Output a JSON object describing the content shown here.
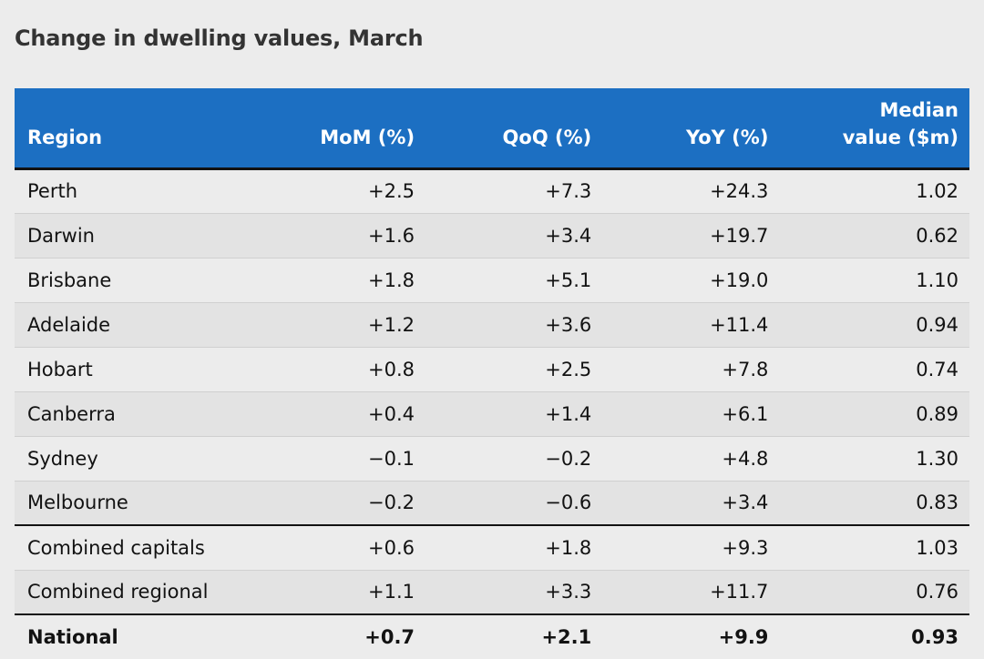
{
  "title": "Change in dwelling values, March",
  "chart_data": {
    "type": "table",
    "title": "Change in dwelling values, March",
    "columns": [
      "Region",
      "MoM (%)",
      "QoQ (%)",
      "YoY (%)",
      "Median value ($m)"
    ],
    "rows": [
      {
        "region": "Perth",
        "mom": "+2.5",
        "qoq": "+7.3",
        "yoy": "+24.3",
        "median": "1.02"
      },
      {
        "region": "Darwin",
        "mom": "+1.6",
        "qoq": "+3.4",
        "yoy": "+19.7",
        "median": "0.62"
      },
      {
        "region": "Brisbane",
        "mom": "+1.8",
        "qoq": "+5.1",
        "yoy": "+19.0",
        "median": "1.10"
      },
      {
        "region": "Adelaide",
        "mom": "+1.2",
        "qoq": "+3.6",
        "yoy": "+11.4",
        "median": "0.94"
      },
      {
        "region": "Hobart",
        "mom": "+0.8",
        "qoq": "+2.5",
        "yoy": "+7.8",
        "median": "0.74"
      },
      {
        "region": "Canberra",
        "mom": "+0.4",
        "qoq": "+1.4",
        "yoy": "+6.1",
        "median": "0.89"
      },
      {
        "region": "Sydney",
        "mom": "−0.1",
        "qoq": "−0.2",
        "yoy": "+4.8",
        "median": "1.30"
      },
      {
        "region": "Melbourne",
        "mom": "−0.2",
        "qoq": "−0.6",
        "yoy": "+3.4",
        "median": "0.83"
      },
      {
        "region": "Combined capitals",
        "mom": "+0.6",
        "qoq": "+1.8",
        "yoy": "+9.3",
        "median": "1.03"
      },
      {
        "region": "Combined regional",
        "mom": "+1.1",
        "qoq": "+3.3",
        "yoy": "+11.7",
        "median": "0.76"
      },
      {
        "region": "National",
        "mom": "+0.7",
        "qoq": "+2.1",
        "yoy": "+9.9",
        "median": "0.93"
      }
    ],
    "header_color": "#1c6fc2"
  }
}
